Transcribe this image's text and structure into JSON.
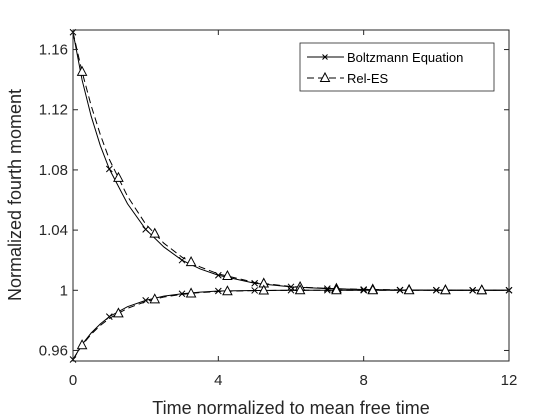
{
  "chart_data": {
    "type": "line",
    "title": "",
    "xlabel": "Time normalized to mean free time",
    "ylabel": "Normalized fourth moment",
    "xlim": [
      0,
      12
    ],
    "ylim": [
      0.953,
      1.173
    ],
    "xticks": [
      0,
      4,
      8,
      12
    ],
    "xtick_labels": [
      "0",
      "4",
      "8",
      "12"
    ],
    "yticks": [
      0.96,
      1.0,
      1.04,
      1.08,
      1.12,
      1.16
    ],
    "ytick_labels": [
      "0.96",
      "1",
      "1.04",
      "1.08",
      "1.12",
      "1.16"
    ],
    "grid": false,
    "legend_position": "top-right",
    "series": [
      {
        "name": "Boltzmann Equation",
        "style": "solid",
        "marker": "x",
        "color": "#000000",
        "branches": [
          {
            "x": [
              0,
              0.25,
              0.5,
              0.75,
              1,
              1.5,
              2,
              2.5,
              3,
              3.5,
              4,
              5,
              6,
              7,
              8,
              9,
              10,
              11,
              12
            ],
            "y": [
              1.1715,
              1.1398,
              1.1157,
              1.0963,
              1.0806,
              1.0575,
              1.0405,
              1.0288,
              1.02,
              1.0142,
              1.01,
              1.0047,
              1.0023,
              1.0011,
              1.0005,
              1.0002,
              1.0001,
              1.0,
              1.0
            ]
          },
          {
            "x": [
              0,
              0.25,
              0.5,
              0.75,
              1,
              1.5,
              2,
              2.5,
              3,
              3.5,
              4,
              5,
              6,
              7,
              8,
              9,
              10,
              11,
              12
            ],
            "y": [
              0.954,
              0.964,
              0.9716,
              0.9776,
              0.9825,
              0.9891,
              0.9933,
              0.9961,
              0.9977,
              0.9988,
              0.9995,
              0.9999,
              1.0,
              1.0,
              1.0,
              1.0,
              1.0,
              1.0,
              1.0
            ]
          }
        ],
        "marker_x": [
          0,
          1,
          2,
          3,
          4,
          5,
          6,
          7,
          8,
          9,
          10,
          11,
          12
        ]
      },
      {
        "name": "Rel-ES",
        "style": "dashed",
        "marker": "triangle",
        "color": "#000000",
        "branches": [
          {
            "x": [
              0,
              0.25,
              0.5,
              0.75,
              1,
              1.5,
              2,
              2.5,
              3,
              3.5,
              4,
              5,
              6,
              7,
              8,
              9,
              10,
              11,
              12
            ],
            "y": [
              1.1715,
              1.1452,
              1.1227,
              1.1036,
              1.087,
              1.0625,
              1.044,
              1.0313,
              1.022,
              1.0155,
              1.0109,
              1.0052,
              1.0025,
              1.0012,
              1.0006,
              1.0003,
              1.0001,
              1.0,
              1.0
            ]
          },
          {
            "x": [
              0,
              0.25,
              0.5,
              0.75,
              1,
              1.5,
              2,
              2.5,
              3,
              3.5,
              4,
              5,
              6,
              7,
              8,
              9,
              10,
              11,
              12
            ],
            "y": [
              0.954,
              0.9635,
              0.9708,
              0.9766,
              0.9813,
              0.988,
              0.9925,
              0.9955,
              0.9973,
              0.9985,
              0.9992,
              0.9998,
              1.0,
              1.0,
              1.0,
              1.0,
              1.0,
              1.0,
              1.0
            ]
          }
        ],
        "marker_x": [
          0.25,
          1.25,
          2.25,
          3.25,
          4.25,
          5.25,
          6.25,
          7.25,
          8.25,
          9.25,
          10.25,
          11.25
        ]
      }
    ]
  }
}
